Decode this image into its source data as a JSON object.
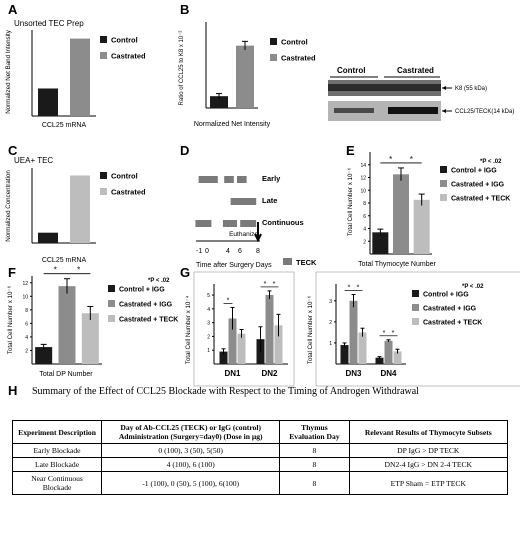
{
  "panels": {
    "A": {
      "letter": "A",
      "header": "Unsorted TEC Prep"
    },
    "B": {
      "letter": "B"
    },
    "C": {
      "letter": "C",
      "header": "UEA+ TEC"
    },
    "D": {
      "letter": "D"
    },
    "E": {
      "letter": "E"
    },
    "F": {
      "letter": "F"
    },
    "G": {
      "letter": "G"
    },
    "H": {
      "letter": "H"
    }
  },
  "colors": {
    "control": "#1a1a1a",
    "castrated": "#8c8c8c",
    "castrated_light": "#bdbdbd",
    "teck": "#c9c9c9",
    "timeline_bar": "#7a7a7a"
  },
  "blot": {
    "control_label": "Control",
    "castrated_label": "Castrated",
    "k8_label": "K8  (55 kDa)",
    "ccl25_label": "CCL25/TECK(14 kDa)"
  },
  "timeline": {
    "rows": [
      "Early",
      "Late",
      "Continuous"
    ],
    "euthanize": "Euthanize",
    "xlabel": "Time after Surgery Days",
    "ticks": [
      "-1",
      "0",
      "4",
      "6",
      "8"
    ],
    "legend": "TECK"
  },
  "chart_data": [
    {
      "id": "A",
      "type": "bar",
      "ylabel": "Normalized Net Band Intensity",
      "xlabel": "CCL25 mRNA",
      "categories": [
        "Control",
        "Castrated"
      ],
      "values": [
        3.2,
        9.0
      ],
      "ylim": [
        0,
        10
      ],
      "legend": [
        "Control",
        "Castrated"
      ]
    },
    {
      "id": "B",
      "type": "bar",
      "ylabel": "Ratio of CCL25 to K8 x 10⁻²",
      "xlabel": "Normalized Net Intensity",
      "categories": [
        "Control",
        "Castrated"
      ],
      "values": [
        0.55,
        2.9
      ],
      "errors": [
        0.12,
        0.2
      ],
      "ylim": [
        0,
        4
      ],
      "legend": [
        "Control",
        "Castrated"
      ]
    },
    {
      "id": "C",
      "type": "bar",
      "ylabel": "Normalized Concentration",
      "xlabel": "CCL25 mRNA",
      "categories": [
        "Control",
        "Castrated"
      ],
      "values": [
        1.1,
        7.2
      ],
      "ylim": [
        0,
        8
      ],
      "legend": [
        "Control",
        "Castrated"
      ]
    },
    {
      "id": "E",
      "type": "bar",
      "ylabel": "Total Cell Number x 10⁻⁶",
      "xlabel": "Total Thymocyte Number",
      "yticks": [
        "2",
        "4",
        "6",
        "8",
        "10",
        "12",
        "14"
      ],
      "ylim": [
        0,
        16
      ],
      "categories": [
        "Control + IGG",
        "Castrated + IGG",
        "Castrated + TECK"
      ],
      "values": [
        3.4,
        12.5,
        8.5
      ],
      "errors": [
        0.5,
        1.0,
        0.9
      ],
      "legend": [
        "Control + IGG",
        "Castrated + IGG",
        "Castrated + TECK"
      ],
      "annotation": "*P < .02",
      "significance": [
        "*",
        "*"
      ]
    },
    {
      "id": "F",
      "type": "bar",
      "ylabel": "Total Cell Number x 10⁻⁶",
      "xlabel": "Total DP Number",
      "yticks": [
        "2",
        "4",
        "6",
        "8",
        "10",
        "12"
      ],
      "ylim": [
        0,
        13
      ],
      "categories": [
        "Control + IGG",
        "Castrated + IGG",
        "Castrated + TECK"
      ],
      "values": [
        2.5,
        11.5,
        7.5
      ],
      "errors": [
        0.4,
        1.1,
        1.0
      ],
      "legend": [
        "Control + IGG",
        "Castrated + IGG",
        "Castrated + TECK"
      ],
      "annotation": "*P < .02",
      "significance": [
        "*",
        "*"
      ]
    },
    {
      "id": "G1",
      "type": "bar",
      "ylabel": "Total Cell Number x 10⁻⁴",
      "categories": [
        "DN1",
        "DN2"
      ],
      "series": [
        {
          "name": "Control + IGG",
          "values": [
            0.9,
            1.8
          ],
          "errors": [
            0.2,
            0.9
          ]
        },
        {
          "name": "Castrated + IGG",
          "values": [
            3.3,
            5.0
          ],
          "errors": [
            0.8,
            0.3
          ]
        },
        {
          "name": "Castrated + TECK",
          "values": [
            2.2,
            2.8
          ],
          "errors": [
            0.3,
            0.8
          ]
        }
      ],
      "yticks": [
        "1",
        "2",
        "3",
        "4",
        "5"
      ],
      "ylim": [
        0,
        5.8
      ],
      "significance": [
        "*",
        "*",
        "*"
      ]
    },
    {
      "id": "G2",
      "type": "bar",
      "ylabel": "Total Cell Number x 10⁻⁶",
      "categories": [
        "DN3",
        "DN4"
      ],
      "series": [
        {
          "name": "Control + IGG",
          "values": [
            0.9,
            0.3
          ],
          "errors": [
            0.1,
            0.05
          ]
        },
        {
          "name": "Castrated + IGG",
          "values": [
            3.0,
            1.1
          ],
          "errors": [
            0.3,
            0.05
          ]
        },
        {
          "name": "Castrated + TECK",
          "values": [
            1.5,
            0.6
          ],
          "errors": [
            0.2,
            0.1
          ]
        }
      ],
      "yticks": [
        "1",
        "2",
        "3"
      ],
      "ylim": [
        0,
        3.8
      ],
      "legend": [
        "Control + IGG",
        "Castrated + IGG",
        "Castrated + TECK"
      ],
      "annotation": "*P < .02",
      "significance": [
        "*",
        "*",
        "*",
        "*"
      ]
    }
  ],
  "summary": {
    "title": "Summary of the Effect of CCL25 Blockade with Respect to the Timing of Androgen Withdrawal",
    "headers": [
      "Experiment Description",
      "Day of Ab-CCL25 (TECK) or IgG (control) Administration (Surgery=day0) (Dose in µg)",
      "Thymus Evaluation Day",
      "Relevant Results of Thymocyte Subsets"
    ],
    "rows": [
      [
        "Early Blockade",
        "0 (100), 3 (50), 5(50)",
        "8",
        "DP IgG > DP TECK"
      ],
      [
        "Late Blockade",
        "4 (100), 6 (100)",
        "8",
        "DN2-4 IgG > DN 2-4 TECK"
      ],
      [
        "Near Continuous Blockade",
        "-1 (100), 0 (50), 5 (100), 6(100)",
        "8",
        "ETP Sham = ETP TECK"
      ]
    ]
  }
}
